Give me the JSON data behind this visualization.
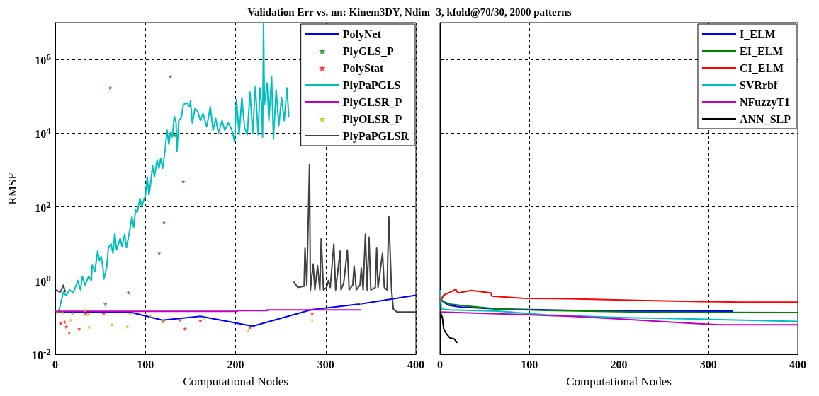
{
  "chart_data": [
    {
      "type": "line",
      "title": "Validation Err vs. nn: Kinem3DY, Ndim=3, kfold@70/30, 2000 patterns",
      "xlabel": "Computational Nodes",
      "ylabel": "RMSE",
      "log": "y",
      "grid": true,
      "legend": "top right",
      "line_style": "solid",
      "xlim": [
        0,
        400
      ],
      "xticks": [
        0,
        100,
        200,
        300,
        400
      ],
      "ylim": [
        0.01,
        10000000
      ],
      "yticks": [
        {
          "value": 0.01,
          "label": "10$^{-2}$"
        },
        {
          "value": 1,
          "label": "10$^{0}$"
        },
        {
          "value": 100,
          "label": "10$^{2}$"
        },
        {
          "value": 10000,
          "label": "10$^{4}$"
        },
        {
          "value": 1000000,
          "label": "10$^{6}$"
        }
      ],
      "series": [
        {
          "name": "PolyNet",
          "type": "line",
          "color": "#0000ff",
          "x": [
            0,
            85,
            119,
            161,
            219,
            284,
            339,
            400
          ],
          "values": [
            0.136,
            0.136,
            0.084,
            0.108,
            0.058,
            0.162,
            0.234,
            0.4
          ]
        },
        {
          "name": "PlyGLS_P",
          "type": "scatter",
          "marker": "star",
          "color": "#008000",
          "x": [
            61,
            127.7,
            142,
            120.6,
            115.3,
            81.3,
            55.6,
            132.4
          ],
          "values": [
            170000,
            340000,
            490,
            38,
            5.5,
            0.47,
            0.23,
            8700
          ]
        },
        {
          "name": "PolyStat",
          "type": "scatter",
          "marker": "star",
          "color": "#ff0000",
          "x": [
            6,
            10.5,
            12.3,
            15.5,
            26.5,
            33.6,
            53.7,
            119.8,
            138,
            144,
            161,
            216,
            285
          ],
          "values": [
            0.069,
            0.075,
            0.056,
            0.039,
            0.049,
            0.125,
            0.125,
            0.078,
            0.086,
            0.049,
            0.081,
            0.054,
            0.125
          ]
        },
        {
          "name": "PlyPaPGLS",
          "type": "line",
          "color": "#00bfbf",
          "x": [
            4,
            9,
            12,
            16,
            20,
            25,
            28,
            30,
            33,
            37,
            40,
            41,
            44,
            47,
            49,
            51,
            53,
            54,
            57,
            59,
            62,
            64,
            66,
            68,
            72,
            74,
            77,
            79,
            81,
            83,
            85,
            87,
            89,
            91,
            94,
            96,
            98,
            100,
            102,
            104,
            106,
            108,
            110,
            113,
            115,
            117,
            119,
            122,
            124,
            126,
            128,
            130,
            132,
            134,
            135,
            137,
            140,
            142,
            146,
            149,
            150,
            152,
            155,
            158,
            161,
            164,
            168,
            172,
            175,
            178,
            181,
            185,
            188,
            192,
            196,
            199,
            201,
            204,
            207,
            210,
            213,
            216,
            219,
            222,
            225,
            227,
            229,
            230,
            231,
            232,
            235,
            237,
            240,
            242,
            245,
            248,
            251,
            254,
            257,
            259
          ],
          "values": [
            0.15,
            0.49,
            0.39,
            0.56,
            0.46,
            1.0,
            0.56,
            1.3,
            0.76,
            1.3,
            1.0,
            2.6,
            1.8,
            6.3,
            3.5,
            4.4,
            2.1,
            1.1,
            2.3,
            7.9,
            9.8,
            5.5,
            19,
            6.8,
            14,
            8.5,
            18,
            7.9,
            14,
            26,
            54,
            28,
            83,
            71,
            170,
            100,
            150,
            200,
            650,
            210,
            480,
            1300,
            650,
            1900,
            1100,
            2100,
            1100,
            3700,
            12000,
            5000,
            11000,
            7800,
            29000,
            19000,
            3200,
            22000,
            27000,
            60000,
            66000,
            52000,
            76000,
            19000,
            46000,
            39000,
            22000,
            34000,
            15000,
            52000,
            12000,
            25000,
            10000,
            22000,
            12000,
            19000,
            12000,
            5800,
            81000,
            9100,
            93000,
            14000,
            9100,
            130000,
            10000,
            190000,
            9100,
            170000,
            52000,
            7800,
            10000000,
            60000,
            230000,
            22000,
            350000,
            6800,
            150000,
            16000,
            93000,
            22000,
            170000,
            29000
          ]
        },
        {
          "name": "PlyGLSR_P",
          "type": "line",
          "color": "#bf00bf",
          "x": [
            0,
            202,
            202,
            235,
            235,
            339
          ],
          "values": [
            0.147,
            0.147,
            0.153,
            0.153,
            0.16,
            0.16
          ]
        },
        {
          "name": "PlyOLSR_P",
          "type": "scatter",
          "marker": "star",
          "color": "#bfbf00",
          "x": [
            2.6,
            7.9,
            19.1,
            17,
            33.3,
            36.7,
            37.5,
            62.9,
            80,
            83.1,
            105.6,
            119.8,
            164.4,
            214.2,
            285,
            339
          ],
          "values": [
            0.136,
            0.136,
            0.126,
            0.086,
            0.155,
            0.12,
            0.056,
            0.064,
            0.056,
            0.126,
            0.109,
            0.084,
            0.097,
            0.045,
            0.086,
            0.234
          ]
        },
        {
          "name": "PlyPaPGLSR",
          "type": "line",
          "color": "#404040",
          "x": [
            1,
            4,
            6,
            9,
            11,
            130,
            265,
            269,
            276,
            277,
            279,
            282,
            283,
            286,
            288,
            291,
            293.5,
            295,
            297.5,
            301,
            303,
            305,
            309,
            311,
            316,
            317,
            320,
            324,
            326,
            330,
            331.5,
            334,
            338,
            339.5,
            341.5,
            344,
            346,
            348,
            350,
            355,
            356.5,
            358,
            363,
            365,
            368,
            370,
            373,
            375,
            379,
            400
          ],
          "values": [
            0.55,
            0.5,
            0.5,
            0.75,
            0.5,
            null,
            0.9,
            0.65,
            0.7,
            7.9,
            0.76,
            1400,
            0.56,
            2.8,
            0.56,
            2.5,
            0.56,
            14,
            0.56,
            0.65,
            1.0,
            0.65,
            9.8,
            0.56,
            6.3,
            0.56,
            0.88,
            6.8,
            0.56,
            0.76,
            2.5,
            0.56,
            0.76,
            2.2,
            0.56,
            18,
            0.56,
            15,
            0.56,
            0.65,
            7.9,
            0.65,
            5.5,
            0.65,
            0.56,
            54,
            0.56,
            0.17,
            0.14,
            0.14
          ]
        }
      ]
    },
    {
      "type": "line",
      "xlabel": "Computational Nodes",
      "log": "y",
      "grid": true,
      "legend": "top right",
      "line_style": "solid",
      "tick_labels": "x",
      "xlim": [
        0,
        400
      ],
      "xticks": [
        0,
        100,
        200,
        300,
        400
      ],
      "ylim": [
        0.01,
        10000000
      ],
      "yticks": [
        0.01,
        1,
        100,
        10000,
        1000000
      ],
      "series": [
        {
          "name": "I_ELM",
          "color": "#0000ff",
          "x": [
            0.5,
            5,
            11,
            24,
            65,
            119,
            184,
            327
          ],
          "values": [
            0.32,
            0.25,
            0.21,
            0.19,
            0.17,
            0.16,
            0.15,
            0.148
          ]
        },
        {
          "name": "EI_ELM",
          "color": "#008000",
          "x": [
            0.5,
            2,
            11,
            24,
            65,
            119,
            222,
            400
          ],
          "values": [
            0.43,
            0.28,
            0.23,
            0.21,
            0.17,
            0.155,
            0.14,
            0.135
          ]
        },
        {
          "name": "CI_ELM",
          "color": "#ff0000",
          "x": [
            0.5,
            4,
            11,
            17.6,
            20,
            35,
            57,
            58,
            92,
            146,
            220,
            293,
            336,
            400
          ],
          "values": [
            0.27,
            0.4,
            0.48,
            0.58,
            0.46,
            0.54,
            0.46,
            0.38,
            0.33,
            0.32,
            0.29,
            0.27,
            0.26,
            0.26
          ]
        },
        {
          "name": "SVRrbf",
          "color": "#00bfbf",
          "x": [
            0.5,
            1.4,
            11,
            65,
            119,
            200,
            282,
            400
          ],
          "values": [
            0.54,
            0.17,
            0.16,
            0.148,
            0.117,
            0.1,
            0.091,
            0.078
          ]
        },
        {
          "name": "NFuzzyT1",
          "color": "#bf00bf",
          "x": [
            0.5,
            65,
            146,
            200,
            282,
            312,
            400
          ],
          "values": [
            0.14,
            0.126,
            0.108,
            0.091,
            0.069,
            0.063,
            0.063
          ]
        },
        {
          "name": "ANN_SLP",
          "color": "#000000",
          "x": [
            0.5,
            2.7,
            4,
            6.8,
            11,
            16,
            19
          ],
          "values": [
            0.135,
            0.1,
            0.051,
            0.037,
            0.028,
            0.026,
            0.021
          ]
        }
      ]
    }
  ]
}
